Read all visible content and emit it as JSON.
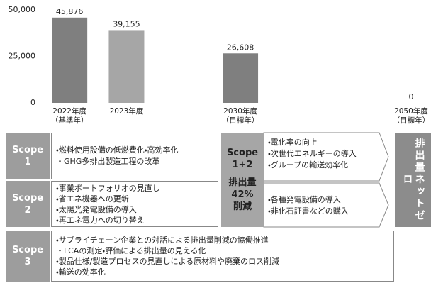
{
  "chart_data": {
    "type": "bar",
    "categories": [
      "2022年度\n（基準年）",
      "2023年度",
      null,
      "2030年度\n（目標年）",
      null,
      null,
      "2050年度\n（目標年）"
    ],
    "values": [
      45876,
      39155,
      null,
      26608,
      null,
      null,
      0
    ],
    "value_labels": [
      "45,876",
      "39,155",
      null,
      "26,608",
      null,
      null,
      "0"
    ],
    "colors": [
      "#7f7f7f",
      "#a6a6a6",
      null,
      "#7f7f7f",
      null,
      null,
      "#7f7f7f"
    ],
    "ylim": [
      0,
      50000
    ],
    "yticks": [
      0,
      {
        "value": 25000,
        "label": "25,000"
      },
      {
        "value": 50000,
        "label": "50,000"
      }
    ],
    "grid": false
  },
  "diagram": {
    "scope1": {
      "label": "Scope\n1",
      "items": [
        "・燃料使用設備の低燃費化・高効率化",
        "・GHG多排出製造工程の改革"
      ]
    },
    "scope2": {
      "label": "Scope\n2",
      "items": [
        "・事業ポートフォリオの見直し",
        "・省エネ機器への更新",
        "・太陽光発電設備の導入",
        "・再エネ電力への切り替え"
      ]
    },
    "scope3": {
      "label": "Scope\n3",
      "items": [
        "・サプライチェーン企業との対話による排出量削減の協働推進",
        "・LCAの測定・評価による排出量の見える化",
        "・製品仕様/製造プロセスの見直しによる原材料や廃棄のロス削減",
        "・輸送の効率化"
      ]
    },
    "scope12": {
      "label": "Scope\n1+2",
      "target": "排出量\n42%\n削減"
    },
    "arrow1": {
      "items": [
        "・電化率の向上",
        "・次世代エネルギーの導入",
        "・グループの輸送効率化"
      ]
    },
    "arrow2": {
      "items": [
        "・各種発電設備の導入",
        "・非化石証書などの購入"
      ]
    },
    "goal": {
      "label": "排出量ネットゼロ"
    }
  }
}
